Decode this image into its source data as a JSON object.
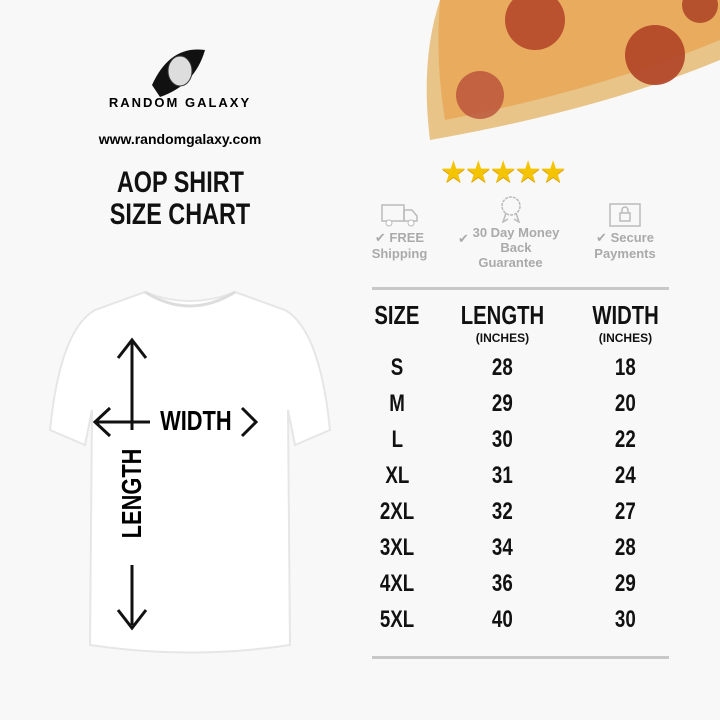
{
  "brand": {
    "name": "RANDOM GALAXY",
    "url": "www.randomgalaxy.com"
  },
  "title": {
    "line1": "AOP SHIRT",
    "line2": "SIZE CHART"
  },
  "rating": {
    "stars": 5,
    "max": 5,
    "color": "#f5c400"
  },
  "badges": [
    {
      "icon": "truck-icon",
      "label": "FREE Shipping"
    },
    {
      "icon": "ribbon-icon",
      "label_line1": "30 Day Money",
      "label_line2": "Back Guarantee"
    },
    {
      "icon": "lock-icon",
      "label": "Secure Payments"
    }
  ],
  "shirt": {
    "width_label": "WIDTH",
    "length_label": "LENGTH"
  },
  "size_table": {
    "headers": [
      {
        "label": "SIZE",
        "unit": ""
      },
      {
        "label": "LENGTH",
        "unit": "(INCHES)"
      },
      {
        "label": "WIDTH",
        "unit": "(INCHES)"
      }
    ],
    "rows": [
      [
        "S",
        "28",
        "18"
      ],
      [
        "M",
        "29",
        "20"
      ],
      [
        "L",
        "30",
        "22"
      ],
      [
        "XL",
        "31",
        "24"
      ],
      [
        "2XL",
        "32",
        "27"
      ],
      [
        "3XL",
        "34",
        "28"
      ],
      [
        "4XL",
        "36",
        "29"
      ],
      [
        "5XL",
        "40",
        "30"
      ]
    ]
  }
}
